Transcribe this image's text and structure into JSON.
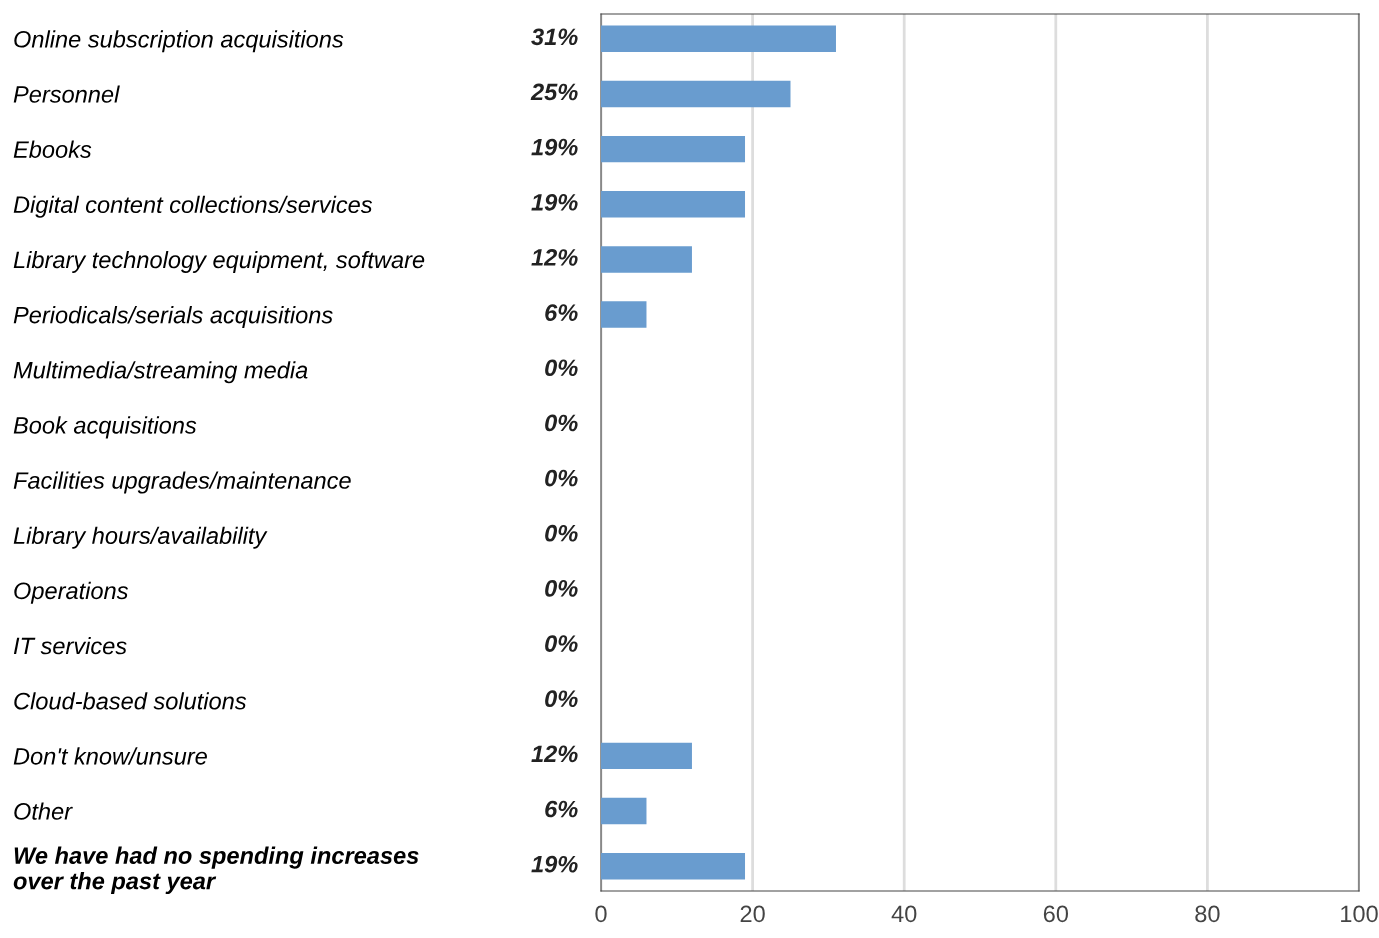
{
  "chart_data": {
    "type": "bar",
    "orientation": "horizontal",
    "categories": [
      "Online subscription acquisitions",
      "Personnel",
      "Ebooks",
      "Digital content collections/services",
      "Library technology equipment, software",
      "Periodicals/serials acquisitions",
      "Multimedia/streaming media",
      "Book acquisitions",
      "Facilities upgrades/maintenance",
      "Library hours/availability",
      "Operations",
      "IT services",
      "Cloud-based solutions",
      "Don't know/unsure",
      "Other",
      "We have had no spending increases\nover the past year"
    ],
    "values": [
      31,
      25,
      19,
      19,
      12,
      6,
      0,
      0,
      0,
      0,
      0,
      0,
      0,
      12,
      6,
      19
    ],
    "value_labels": [
      "31%",
      "25%",
      "19%",
      "19%",
      "12%",
      "6%",
      "0%",
      "0%",
      "0%",
      "0%",
      "0%",
      "0%",
      "0%",
      "12%",
      "6%",
      "19%"
    ],
    "color": "#699ccf",
    "xlim": [
      0,
      100
    ],
    "xticks": [
      0,
      20,
      40,
      60,
      80,
      100
    ],
    "grid": "x",
    "legend": false
  }
}
